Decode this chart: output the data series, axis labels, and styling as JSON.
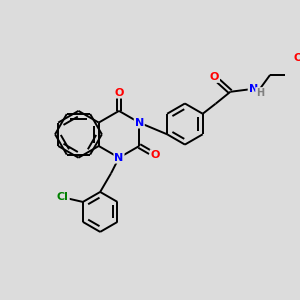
{
  "bg_color": "#dcdcdc",
  "bond_color": "#000000",
  "N_color": "#0000ff",
  "O_color": "#ff0000",
  "Cl_color": "#008000",
  "H_color": "#808080",
  "line_width": 1.4,
  "font_size": 8.0,
  "figsize": [
    3.0,
    3.0
  ],
  "dpi": 100,
  "xlim": [
    0,
    10
  ],
  "ylim": [
    0,
    10
  ]
}
